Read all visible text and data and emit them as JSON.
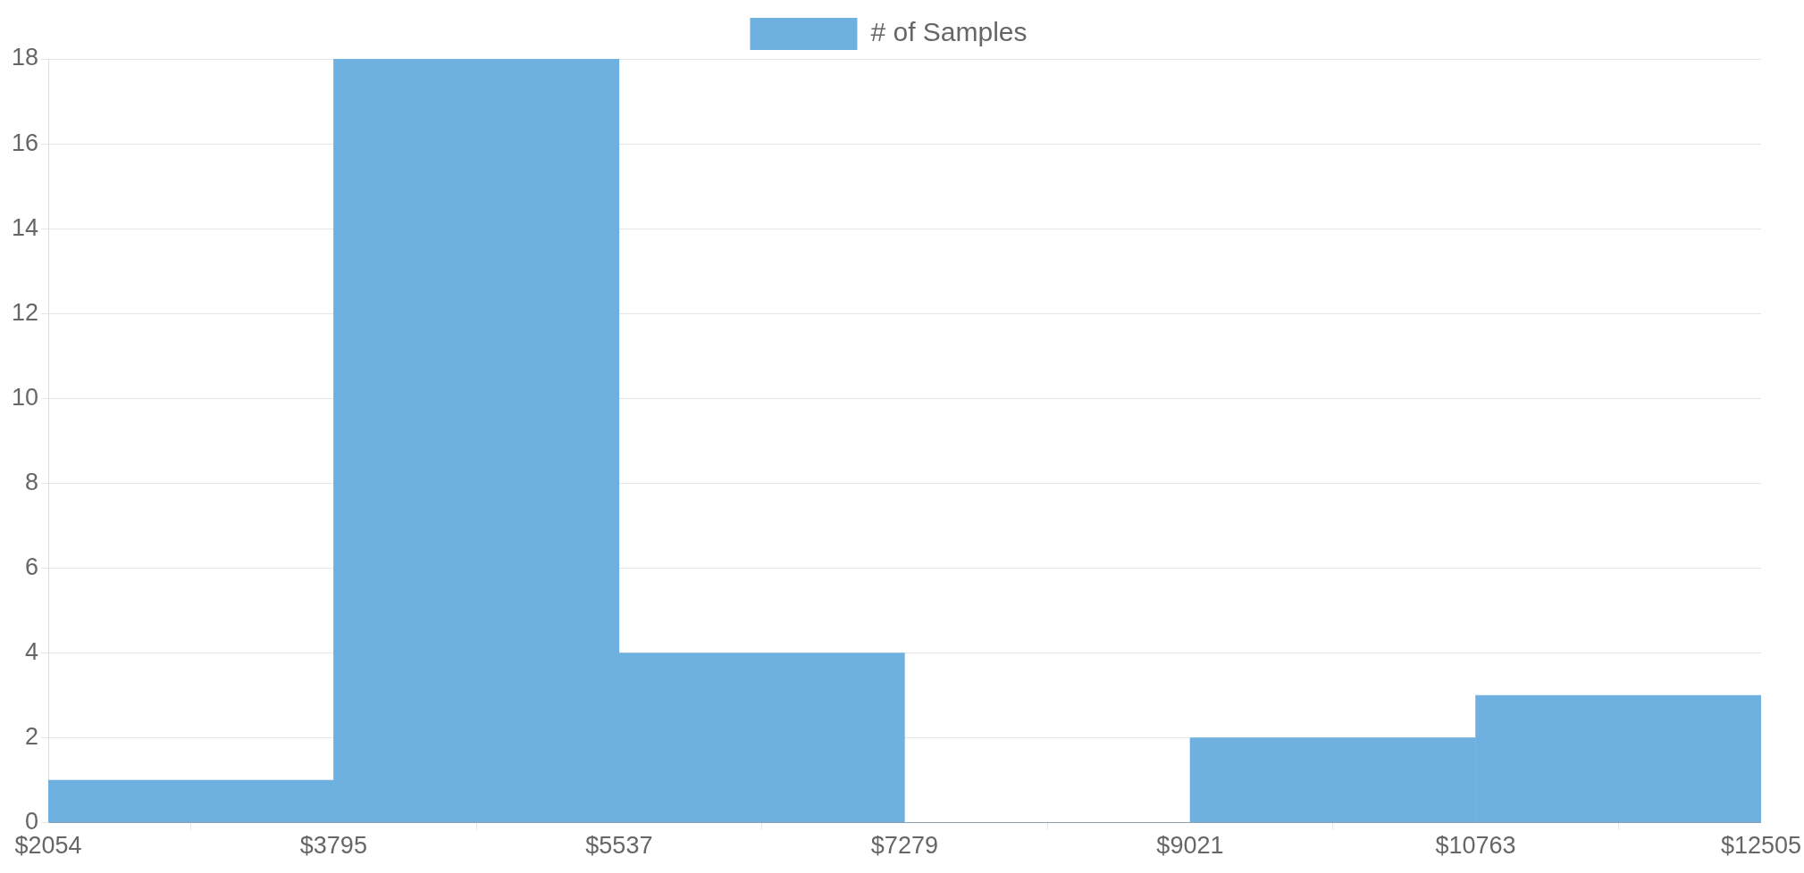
{
  "chart_data": {
    "type": "histogram",
    "bins": [
      2054,
      3795,
      5537,
      7279,
      9021,
      10763,
      12505
    ],
    "series": [
      {
        "name": "# of Samples",
        "color": "#6eb0e0",
        "values": [
          1,
          18,
          4,
          0,
          2,
          3
        ]
      }
    ],
    "xlim": [
      2054,
      12505
    ],
    "xticks": [
      {
        "value": 2054,
        "label": "$2054"
      },
      {
        "value": 3795,
        "label": "$3795"
      },
      {
        "value": 5537,
        "label": "$5537"
      },
      {
        "value": 7279,
        "label": "$7279"
      },
      {
        "value": 9021,
        "label": "$9021"
      },
      {
        "value": 10763,
        "label": "$10763"
      },
      {
        "value": 12505,
        "label": "$12505"
      }
    ],
    "ylim": [
      0,
      18
    ],
    "yticks": [
      0,
      2,
      4,
      6,
      8,
      10,
      12,
      14,
      16,
      18
    ],
    "grid": "y",
    "legend": "top"
  }
}
